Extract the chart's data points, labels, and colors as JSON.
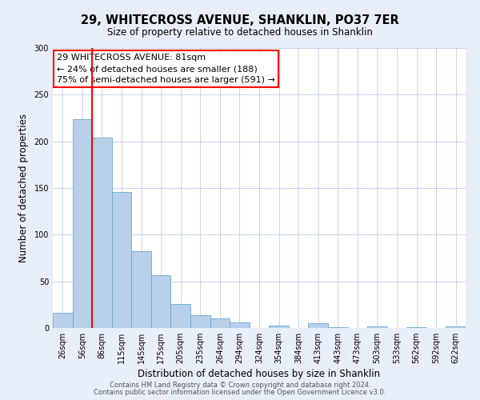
{
  "title": "29, WHITECROSS AVENUE, SHANKLIN, PO37 7ER",
  "subtitle": "Size of property relative to detached houses in Shanklin",
  "xlabel": "Distribution of detached houses by size in Shanklin",
  "ylabel": "Number of detached properties",
  "bin_labels": [
    "26sqm",
    "56sqm",
    "86sqm",
    "115sqm",
    "145sqm",
    "175sqm",
    "205sqm",
    "235sqm",
    "264sqm",
    "294sqm",
    "324sqm",
    "354sqm",
    "384sqm",
    "413sqm",
    "443sqm",
    "473sqm",
    "503sqm",
    "533sqm",
    "562sqm",
    "592sqm",
    "622sqm"
  ],
  "bar_values": [
    16,
    224,
    204,
    146,
    82,
    57,
    26,
    14,
    10,
    6,
    0,
    3,
    0,
    5,
    1,
    0,
    2,
    0,
    1,
    0,
    2
  ],
  "bar_color": "#b8d0ea",
  "bar_edge_color": "#6aaad4",
  "ylim": [
    0,
    300
  ],
  "yticks": [
    0,
    50,
    100,
    150,
    200,
    250,
    300
  ],
  "red_line_x": 1.5,
  "annotation_title": "29 WHITECROSS AVENUE: 81sqm",
  "annotation_line1": "← 24% of detached houses are smaller (188)",
  "annotation_line2": "75% of semi-detached houses are larger (591) →",
  "footer1": "Contains HM Land Registry data © Crown copyright and database right 2024.",
  "footer2": "Contains public sector information licensed under the Open Government Licence v3.0.",
  "bg_color": "#e8eef7",
  "plot_bg_color": "#ffffff",
  "grid_color": "#c8d4e8"
}
